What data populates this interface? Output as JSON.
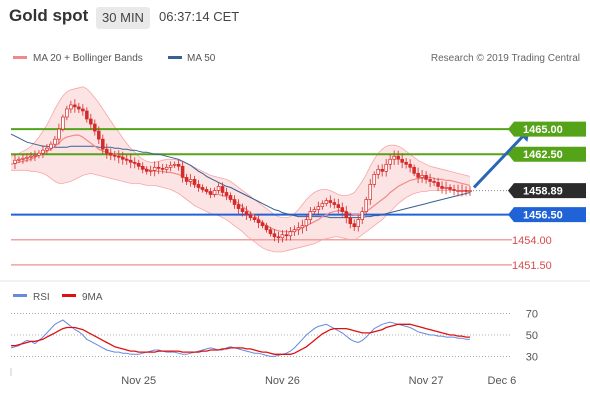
{
  "header": {
    "title": "Gold spot",
    "timeframe": "30 MIN",
    "time": "06:37:14 CET"
  },
  "colors": {
    "candle": "#d42a2a",
    "bollinger_fill": "#fde1e1",
    "bollinger_line": "#f6a6a6",
    "ma20": "#f08a8a",
    "ma50": "#3a5f93",
    "resistance": "#55a318",
    "support": "#1f63d6",
    "pivot": "#f2a0a0",
    "current_label_bg": "#2b2b2b",
    "rsi": "#6688dd",
    "rsi_ma": "#dd1111",
    "arrow": "#2b66b6"
  },
  "chart_data": [
    {
      "type": "line",
      "title": "Gold spot",
      "legend": {
        "entries": [
          "MA 20 + Bollinger Bands",
          "MA 50"
        ],
        "position": "top-left"
      },
      "watermark": "Research © 2019 Trading Central",
      "ylim": [
        1450.5,
        1466.3
      ],
      "current_price": {
        "label": "1458.89",
        "value": 1458.89
      },
      "levels": [
        {
          "label": "1465.00",
          "value": 1465.0,
          "kind": "resistance"
        },
        {
          "label": "1462.50",
          "value": 1462.5,
          "kind": "resistance"
        },
        {
          "label": "1456.50",
          "value": 1456.5,
          "kind": "support"
        },
        {
          "label": "1454.00",
          "value": 1454.0,
          "kind": "pivot"
        },
        {
          "label": "1451.50",
          "value": 1451.5,
          "kind": "pivot"
        }
      ],
      "x_ticks": [
        "Nov 25",
        "Nov 26",
        "Nov 27",
        "Dec 6"
      ],
      "x_tick_index": [
        32,
        68,
        104,
        123
      ],
      "n_bars": 116,
      "price": [
        1461.6,
        1461.9,
        1462.0,
        1462.1,
        1462.2,
        1462.3,
        1462.4,
        1462.6,
        1462.9,
        1463.1,
        1463.5,
        1464.0,
        1465.0,
        1466.2,
        1467.0,
        1467.4,
        1467.2,
        1467.0,
        1466.8,
        1466.0,
        1465.5,
        1464.8,
        1464.0,
        1463.0,
        1462.6,
        1462.4,
        1462.3,
        1462.2,
        1462.0,
        1461.9,
        1461.7,
        1461.6,
        1461.3,
        1461.0,
        1460.8,
        1460.9,
        1461.2,
        1461.1,
        1461.0,
        1461.2,
        1461.4,
        1461.5,
        1461.3,
        1460.2,
        1459.8,
        1460.0,
        1459.5,
        1459.2,
        1459.0,
        1458.8,
        1458.5,
        1458.9,
        1459.3,
        1458.7,
        1458.4,
        1458.0,
        1457.5,
        1457.1,
        1456.8,
        1456.5,
        1456.2,
        1456.0,
        1455.7,
        1455.4,
        1455.0,
        1454.6,
        1454.3,
        1454.2,
        1454.5,
        1454.4,
        1454.8,
        1455.0,
        1455.2,
        1455.4,
        1456.0,
        1456.8,
        1457.0,
        1457.3,
        1457.6,
        1457.9,
        1457.7,
        1457.5,
        1457.2,
        1456.8,
        1456.2,
        1455.6,
        1455.3,
        1456.0,
        1456.8,
        1458.0,
        1459.5,
        1460.5,
        1461.0,
        1460.8,
        1461.5,
        1462.0,
        1462.3,
        1462.0,
        1461.7,
        1461.5,
        1461.2,
        1460.6,
        1460.2,
        1460.4,
        1460.0,
        1459.8,
        1459.7,
        1459.3,
        1459.1,
        1459.2,
        1459.0,
        1458.9,
        1458.9,
        1458.9,
        1458.8,
        1458.89
      ],
      "ma20": [
        1461.5,
        1461.6,
        1461.7,
        1461.8,
        1461.9,
        1462.0,
        1462.2,
        1462.4,
        1462.6,
        1462.8,
        1463.0,
        1463.3,
        1463.6,
        1464.0,
        1464.2,
        1464.3,
        1464.4,
        1464.4,
        1464.2,
        1463.9,
        1463.6,
        1463.3,
        1463.0,
        1462.8,
        1462.7,
        1462.6,
        1462.5,
        1462.4,
        1462.2,
        1462.0,
        1461.8,
        1461.6,
        1461.4,
        1461.2,
        1461.0,
        1460.9,
        1460.8,
        1460.8,
        1460.8,
        1460.7,
        1460.7,
        1460.6,
        1460.5,
        1460.3,
        1460.0,
        1459.7,
        1459.4,
        1459.2,
        1459.0,
        1458.8,
        1458.6,
        1458.5,
        1458.5,
        1458.4,
        1458.3,
        1458.1,
        1457.9,
        1457.6,
        1457.3,
        1457.0,
        1456.7,
        1456.4,
        1456.0,
        1455.7,
        1455.4,
        1455.2,
        1455.0,
        1454.9,
        1454.8,
        1454.8,
        1454.8,
        1454.9,
        1455.0,
        1455.2,
        1455.4,
        1455.6,
        1455.8,
        1456.0,
        1456.3,
        1456.5,
        1456.7,
        1456.8,
        1456.9,
        1456.9,
        1456.8,
        1456.6,
        1456.5,
        1456.5,
        1456.6,
        1456.8,
        1457.1,
        1457.4,
        1457.7,
        1458.0,
        1458.3,
        1458.7,
        1459.0,
        1459.3,
        1459.5,
        1459.7,
        1459.9,
        1460.0,
        1460.1,
        1460.1,
        1460.2,
        1460.2,
        1460.1,
        1460.0,
        1460.0,
        1459.9,
        1459.9,
        1459.8,
        1459.7,
        1459.6,
        1459.5,
        1459.4
      ],
      "bb_upper": [
        1462.3,
        1462.4,
        1462.6,
        1462.8,
        1463.0,
        1463.3,
        1463.7,
        1464.2,
        1464.8,
        1465.4,
        1466.2,
        1467.0,
        1467.7,
        1468.3,
        1468.7,
        1468.9,
        1469.0,
        1469.1,
        1469.2,
        1469.0,
        1468.6,
        1468.1,
        1467.6,
        1467.0,
        1466.4,
        1465.8,
        1465.2,
        1464.7,
        1464.1,
        1463.6,
        1463.1,
        1462.7,
        1462.3,
        1462.0,
        1461.8,
        1461.7,
        1461.7,
        1461.8,
        1461.9,
        1462.0,
        1462.0,
        1462.0,
        1461.9,
        1461.8,
        1461.6,
        1461.4,
        1461.2,
        1461.0,
        1460.8,
        1460.6,
        1460.4,
        1460.3,
        1460.2,
        1460.1,
        1460.0,
        1459.8,
        1459.5,
        1459.2,
        1458.9,
        1458.6,
        1458.3,
        1458.0,
        1457.7,
        1457.4,
        1457.1,
        1456.8,
        1456.5,
        1456.3,
        1456.2,
        1456.2,
        1456.3,
        1456.6,
        1457.0,
        1457.5,
        1458.0,
        1458.4,
        1458.7,
        1458.9,
        1459.0,
        1459.0,
        1458.9,
        1458.7,
        1458.5,
        1458.4,
        1458.4,
        1458.5,
        1458.7,
        1459.2,
        1459.8,
        1460.5,
        1461.3,
        1462.0,
        1462.6,
        1463.0,
        1463.3,
        1463.4,
        1463.4,
        1463.3,
        1463.1,
        1462.8,
        1462.5,
        1462.2,
        1461.9,
        1461.7,
        1461.5,
        1461.3,
        1461.2,
        1461.1,
        1461.0,
        1460.9,
        1460.8,
        1460.7,
        1460.6,
        1460.5,
        1460.4,
        1460.3
      ],
      "bb_lower": [
        1460.9,
        1460.9,
        1460.9,
        1460.9,
        1460.9,
        1460.8,
        1460.8,
        1460.7,
        1460.6,
        1460.4,
        1460.1,
        1459.8,
        1459.6,
        1459.6,
        1459.7,
        1459.8,
        1460.0,
        1460.2,
        1460.4,
        1460.5,
        1460.6,
        1460.5,
        1460.4,
        1460.3,
        1460.2,
        1460.1,
        1460.0,
        1459.9,
        1459.8,
        1459.7,
        1459.6,
        1459.6,
        1459.6,
        1459.5,
        1459.4,
        1459.4,
        1459.4,
        1459.3,
        1459.2,
        1459.1,
        1459.0,
        1458.8,
        1458.6,
        1458.3,
        1458.0,
        1457.7,
        1457.4,
        1457.2,
        1457.0,
        1456.8,
        1456.6,
        1456.5,
        1456.4,
        1456.2,
        1456.0,
        1455.7,
        1455.4,
        1455.1,
        1454.8,
        1454.4,
        1454.1,
        1453.8,
        1453.5,
        1453.2,
        1453.0,
        1452.9,
        1452.8,
        1452.8,
        1452.8,
        1452.9,
        1453.0,
        1453.1,
        1453.2,
        1453.3,
        1453.4,
        1453.5,
        1453.6,
        1453.8,
        1454.0,
        1454.1,
        1454.2,
        1454.3,
        1454.3,
        1454.2,
        1454.1,
        1454.0,
        1454.0,
        1454.2,
        1454.5,
        1454.8,
        1455.1,
        1455.4,
        1455.7,
        1456.0,
        1456.4,
        1456.8,
        1457.2,
        1457.6,
        1457.9,
        1458.2,
        1458.4,
        1458.6,
        1458.7,
        1458.8,
        1458.8,
        1458.9,
        1458.9,
        1458.9,
        1458.9,
        1458.9,
        1458.9,
        1458.9,
        1458.9,
        1458.9,
        1458.9,
        1458.9
      ],
      "ma50": [
        1464.5,
        1464.3,
        1464.1,
        1463.9,
        1463.7,
        1463.6,
        1463.5,
        1463.4,
        1463.3,
        1463.3,
        1463.2,
        1463.2,
        1463.2,
        1463.2,
        1463.2,
        1463.3,
        1463.3,
        1463.3,
        1463.3,
        1463.3,
        1463.3,
        1463.3,
        1463.2,
        1463.2,
        1463.2,
        1463.2,
        1463.1,
        1463.1,
        1463.0,
        1463.0,
        1462.9,
        1462.9,
        1462.8,
        1462.7,
        1462.7,
        1462.6,
        1462.5,
        1462.5,
        1462.4,
        1462.3,
        1462.2,
        1462.1,
        1462.0,
        1461.8,
        1461.6,
        1461.4,
        1461.1,
        1460.8,
        1460.6,
        1460.3,
        1460.1,
        1459.9,
        1459.7,
        1459.5,
        1459.3,
        1459.2,
        1459.0,
        1458.8,
        1458.6,
        1458.4,
        1458.2,
        1458.0,
        1457.8,
        1457.6,
        1457.4,
        1457.2,
        1457.0,
        1456.9,
        1456.7,
        1456.6,
        1456.5,
        1456.4,
        1456.3,
        1456.3,
        1456.3,
        1456.3,
        1456.3,
        1456.3,
        1456.3,
        1456.3,
        1456.2,
        1456.2,
        1456.2,
        1456.2,
        1456.2,
        1456.2,
        1456.2,
        1456.2,
        1456.2,
        1456.3,
        1456.3,
        1456.4,
        1456.4,
        1456.5,
        1456.6,
        1456.7,
        1456.8,
        1456.9,
        1457.0,
        1457.1,
        1457.2,
        1457.3,
        1457.4,
        1457.5,
        1457.6,
        1457.7,
        1457.8,
        1457.9,
        1458.0,
        1458.1,
        1458.2,
        1458.3,
        1458.4,
        1458.5,
        1458.6,
        1458.7
      ],
      "arrow": {
        "from": [
          116,
          1459.2
        ],
        "to": [
          130,
          1465.0
        ]
      }
    },
    {
      "type": "line",
      "legend": {
        "entries": [
          "RSI",
          "9MA"
        ],
        "position": "top-left"
      },
      "ylim": [
        22,
        78
      ],
      "y_ticks": [
        "70",
        "50",
        "30"
      ],
      "y_tick_values": [
        70,
        50,
        30
      ],
      "rsi": [
        38,
        39,
        40,
        43,
        45,
        44,
        42,
        45,
        48,
        52,
        56,
        60,
        62,
        64,
        61,
        58,
        55,
        53,
        50,
        46,
        44,
        42,
        40,
        38,
        36,
        35,
        34,
        34,
        33,
        33,
        32,
        32,
        32,
        33,
        34,
        35,
        36,
        36,
        35,
        34,
        34,
        34,
        33,
        32,
        32,
        33,
        34,
        35,
        36,
        37,
        38,
        37,
        36,
        36,
        38,
        39,
        38,
        37,
        36,
        35,
        34,
        33,
        33,
        32,
        31,
        30,
        30,
        31,
        32,
        33,
        35,
        38,
        42,
        46,
        50,
        53,
        56,
        58,
        59,
        60,
        58,
        56,
        54,
        52,
        49,
        46,
        44,
        43,
        45,
        48,
        52,
        56,
        58,
        60,
        61,
        62,
        61,
        60,
        59,
        58,
        57,
        55,
        53,
        52,
        51,
        50,
        50,
        49,
        49,
        48,
        48,
        48,
        47,
        47,
        46,
        46
      ],
      "rsi_ma": [
        40,
        40,
        41,
        42,
        43,
        44,
        44,
        45,
        46,
        48,
        50,
        52,
        54,
        56,
        57,
        57,
        57,
        56,
        55,
        53,
        51,
        49,
        47,
        45,
        43,
        41,
        39,
        38,
        37,
        36,
        35,
        35,
        34,
        34,
        34,
        34,
        34,
        35,
        35,
        35,
        35,
        35,
        35,
        34,
        34,
        34,
        34,
        34,
        35,
        35,
        36,
        36,
        36,
        37,
        37,
        38,
        38,
        38,
        38,
        37,
        37,
        36,
        35,
        34,
        34,
        33,
        32,
        32,
        32,
        32,
        32,
        33,
        35,
        37,
        39,
        42,
        45,
        48,
        51,
        53,
        55,
        56,
        56,
        56,
        56,
        55,
        54,
        53,
        52,
        52,
        52,
        53,
        54,
        55,
        57,
        58,
        59,
        60,
        60,
        60,
        60,
        59,
        58,
        57,
        56,
        55,
        54,
        53,
        52,
        51,
        50,
        50,
        49,
        49,
        48,
        48
      ]
    }
  ]
}
